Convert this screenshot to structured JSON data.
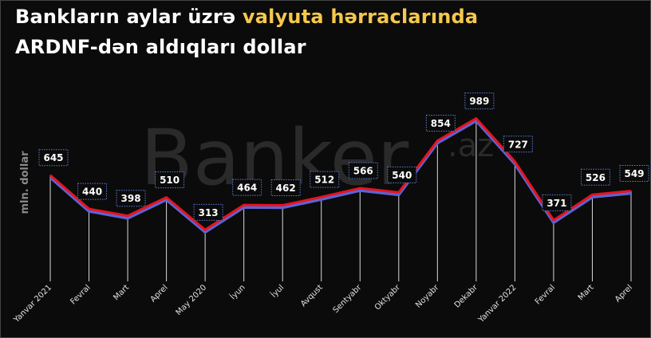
{
  "chart_data": {
    "type": "line",
    "title": [
      "Bankların aylar üzrə",
      "valyuta hərraclarında",
      "ARDNF-dən aldıqları dollar"
    ],
    "watermark": [
      "Banker",
      ".az"
    ],
    "y_label": "mln. dollar",
    "categories": [
      "Yanvar 2021",
      "Fevral",
      "Mart",
      "Aprel",
      "May 2020",
      "İyun",
      "İyul",
      "Avqust",
      "Sentyabr",
      "Oktyabr",
      "Noyabr",
      "Dekabr",
      "Yanvar 2022",
      "Fevral",
      "Mart",
      "Aprel"
    ],
    "series": [
      {
        "name": "mln. dollar",
        "color": "#e8141c",
        "values": [
          645,
          440,
          398,
          510,
          313,
          464,
          462,
          512,
          566,
          540,
          854,
          989,
          727,
          371,
          526,
          549
        ]
      }
    ],
    "ylim": [
      0,
      1200
    ]
  }
}
